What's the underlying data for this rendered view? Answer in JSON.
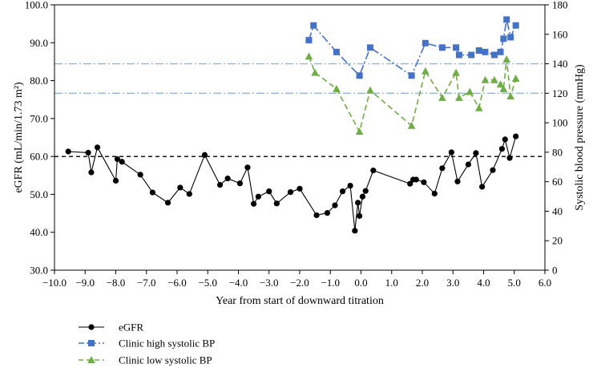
{
  "chart_data": {
    "type": "line",
    "title": "",
    "xlabel": "Year from start of downward titration",
    "ylabel_left": "eGFR (mL/min/1.73 m²)",
    "ylabel_right": "Systolic blood pressure (mmHg)",
    "xlim": [
      -10.0,
      6.0
    ],
    "ylim_left": [
      30.0,
      100.0
    ],
    "ylim_right": [
      0,
      180
    ],
    "x_ticks": [
      "−10.0",
      "−9.0",
      "−8.0",
      "−7.0",
      "−6.0",
      "−5.0",
      "−4.0",
      "−3.0",
      "−2.0",
      "−1.0",
      "0.0",
      "1.0",
      "2.0",
      "3.0",
      "4.0",
      "5.0",
      "6.0"
    ],
    "x_tick_values": [
      -10,
      -9,
      -8,
      -7,
      -6,
      -5,
      -4,
      -3,
      -2,
      -1,
      0,
      1,
      2,
      3,
      4,
      5,
      6
    ],
    "y_left_ticks": [
      "30.0",
      "40.0",
      "50.0",
      "60.0",
      "70.0",
      "80.0",
      "90.0",
      "100.0"
    ],
    "y_left_tick_values": [
      30,
      40,
      50,
      60,
      70,
      80,
      90,
      100
    ],
    "y_right_ticks": [
      "0",
      "20",
      "40",
      "60",
      "80",
      "100",
      "120",
      "140",
      "160",
      "180"
    ],
    "y_right_tick_values": [
      0,
      20,
      40,
      60,
      80,
      100,
      120,
      140,
      160,
      180
    ],
    "reference_lines": [
      {
        "axis": "left",
        "value": 60,
        "style": "dashed",
        "color": "#000000"
      },
      {
        "axis": "right",
        "value": 140,
        "style": "dash-dot",
        "color": "#8fb6e0"
      },
      {
        "axis": "right",
        "value": 120,
        "style": "dash-dot",
        "color": "#8fb6e0"
      }
    ],
    "series": [
      {
        "name": "eGFR",
        "axis": "left",
        "color": "#000000",
        "marker": "circle",
        "line": "solid",
        "x": [
          -9.55,
          -8.9,
          -8.8,
          -8.6,
          -8.0,
          -7.95,
          -7.8,
          -7.2,
          -6.8,
          -6.3,
          -5.9,
          -5.6,
          -5.1,
          -4.6,
          -4.35,
          -3.95,
          -3.7,
          -3.5,
          -3.35,
          -3.0,
          -2.75,
          -2.3,
          -2.0,
          -1.45,
          -1.1,
          -0.85,
          -0.6,
          -0.35,
          -0.2,
          -0.1,
          -0.05,
          0.05,
          0.15,
          0.4,
          1.6,
          1.7,
          1.8,
          2.05,
          2.4,
          2.65,
          2.95,
          3.15,
          3.5,
          3.75,
          3.95,
          4.3,
          4.6,
          4.7,
          4.85,
          5.05
        ],
        "y": [
          61.3,
          61.0,
          55.8,
          62.4,
          53.6,
          59.3,
          58.6,
          55.2,
          50.5,
          47.8,
          51.8,
          50.1,
          60.4,
          52.5,
          54.2,
          52.9,
          57.1,
          47.5,
          49.4,
          50.8,
          47.6,
          50.6,
          51.5,
          44.5,
          45.1,
          47.1,
          50.8,
          52.3,
          40.4,
          47.8,
          44.3,
          49.4,
          50.9,
          56.3,
          52.8,
          53.9,
          53.9,
          53.2,
          50.2,
          56.9,
          61.1,
          53.4,
          57.9,
          60.9,
          52.0,
          56.4,
          62.0,
          64.5,
          59.6,
          65.3
        ]
      },
      {
        "name": "Clinic high systolic BP",
        "axis": "right",
        "color": "#4472c4",
        "marker": "square",
        "line": "dash-dot",
        "x": [
          -1.7,
          -1.55,
          -0.8,
          -0.05,
          0.3,
          1.65,
          2.1,
          2.65,
          3.1,
          3.2,
          3.6,
          3.85,
          4.05,
          4.35,
          4.55,
          4.65,
          4.75,
          4.88,
          5.05
        ],
        "y": [
          156,
          166,
          148,
          132,
          151,
          132,
          154,
          151,
          151,
          146,
          146,
          149,
          148,
          146,
          148,
          157,
          170,
          158,
          166
        ]
      },
      {
        "name": "Clinic low systolic BP",
        "axis": "right",
        "color": "#70ad47",
        "marker": "triangle",
        "line": "dashed",
        "x": [
          -1.7,
          -1.5,
          -0.8,
          -0.05,
          0.3,
          1.65,
          2.1,
          2.65,
          3.1,
          3.2,
          3.55,
          3.85,
          4.05,
          4.35,
          4.55,
          4.65,
          4.75,
          4.88,
          5.05
        ],
        "y": [
          145,
          134,
          123,
          94,
          122,
          98,
          135,
          117,
          134,
          117,
          121,
          110,
          129,
          129,
          126,
          123,
          143,
          118,
          130
        ]
      }
    ],
    "legend_position": "bottom-left"
  }
}
